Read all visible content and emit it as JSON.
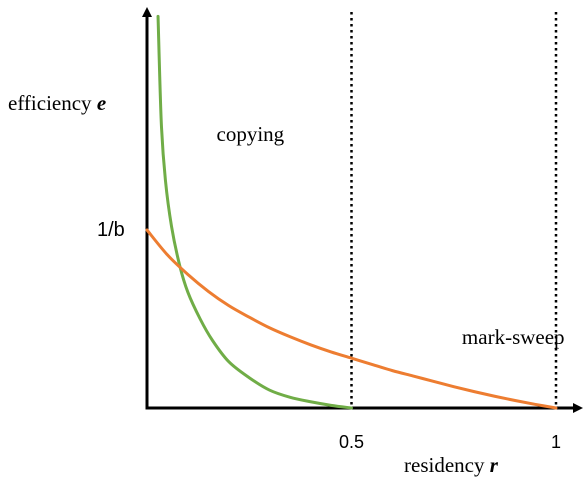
{
  "chart_data": {
    "type": "line",
    "y_axis_label": {
      "text": "efficiency ",
      "symbol": "e"
    },
    "x_axis_label": {
      "text": "residency ",
      "symbol": "r"
    },
    "x_ticks": [
      {
        "value": 0.5,
        "label": "0.5"
      },
      {
        "value": 1.0,
        "label": "1"
      }
    ],
    "y_ticks": [
      {
        "value": 1.0,
        "label": "1/b"
      }
    ],
    "xlim": [
      0,
      1
    ],
    "ylim": [
      0,
      2.0
    ],
    "grid": false,
    "vertical_reference_lines": [
      0.5,
      1.0
    ],
    "series": [
      {
        "name": "copying",
        "color": "#70ad47",
        "points": [
          [
            0.027,
            2.2
          ],
          [
            0.035,
            1.6
          ],
          [
            0.045,
            1.28
          ],
          [
            0.06,
            1.02
          ],
          [
            0.08,
            0.8
          ],
          [
            0.1,
            0.65
          ],
          [
            0.13,
            0.5
          ],
          [
            0.16,
            0.38
          ],
          [
            0.2,
            0.26
          ],
          [
            0.25,
            0.17
          ],
          [
            0.3,
            0.1
          ],
          [
            0.35,
            0.06
          ],
          [
            0.4,
            0.035
          ],
          [
            0.45,
            0.015
          ],
          [
            0.5,
            0.0
          ]
        ]
      },
      {
        "name": "mark-sweep",
        "color": "#ed7d31",
        "points": [
          [
            0.0,
            1.0
          ],
          [
            0.05,
            0.86
          ],
          [
            0.1,
            0.75
          ],
          [
            0.15,
            0.655
          ],
          [
            0.2,
            0.575
          ],
          [
            0.25,
            0.51
          ],
          [
            0.3,
            0.45
          ],
          [
            0.35,
            0.4
          ],
          [
            0.4,
            0.355
          ],
          [
            0.45,
            0.315
          ],
          [
            0.5,
            0.28
          ],
          [
            0.55,
            0.245
          ],
          [
            0.6,
            0.21
          ],
          [
            0.65,
            0.18
          ],
          [
            0.7,
            0.15
          ],
          [
            0.75,
            0.12
          ],
          [
            0.8,
            0.092
          ],
          [
            0.85,
            0.066
          ],
          [
            0.9,
            0.042
          ],
          [
            0.95,
            0.02
          ],
          [
            1.0,
            0.0
          ]
        ]
      }
    ],
    "series_labels": [
      {
        "series": "copying",
        "text": "copying",
        "at": [
          0.17,
          1.5
        ]
      },
      {
        "series": "mark-sweep",
        "text": "mark-sweep",
        "at": [
          0.77,
          0.36
        ]
      }
    ]
  }
}
